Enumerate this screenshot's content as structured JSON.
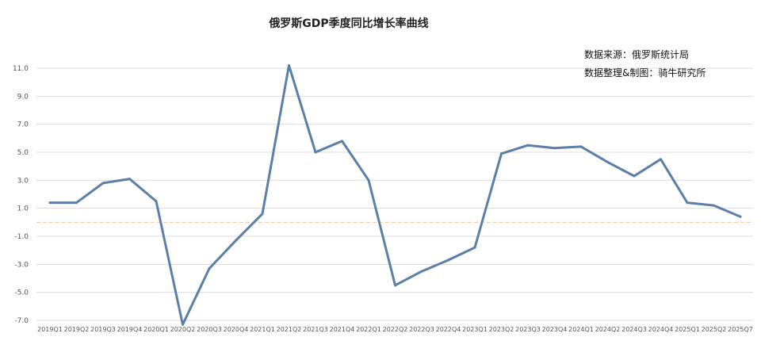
{
  "chart_data": {
    "type": "line",
    "title": "俄罗斯GDP季度同比增长率曲线",
    "source_lines": [
      "数据来源：俄罗斯统计局",
      "数据整理&制图：骑牛研究所"
    ],
    "xlabel": "",
    "ylabel": "",
    "categories": [
      "2019Q1",
      "2019Q2",
      "2019Q3",
      "2019Q4",
      "2020Q1",
      "2020Q2",
      "2020Q3",
      "2020Q4",
      "2021Q1",
      "2021Q2",
      "2021Q3",
      "2021Q4",
      "2022Q1",
      "2022Q2",
      "2022Q3",
      "2022Q4",
      "2023Q1",
      "2023Q2",
      "2023Q3",
      "2023Q4",
      "2024Q1",
      "2024Q2",
      "2024Q3",
      "2024Q4",
      "2025Q1",
      "2025Q2",
      "2025Q7"
    ],
    "series": [
      {
        "values": [
          1.4,
          1.4,
          2.8,
          3.1,
          1.5,
          -7.3,
          -3.3,
          -1.3,
          0.6,
          11.2,
          5.0,
          5.8,
          3.0,
          -4.5,
          -3.5,
          -2.7,
          -1.8,
          4.9,
          5.5,
          5.3,
          5.4,
          4.3,
          3.3,
          4.5,
          1.4,
          1.2,
          0.4
        ]
      }
    ],
    "yticks": [
      "11.0",
      "9.0",
      "7.0",
      "5.0",
      "3.0",
      "1.0",
      "-1.0",
      "-3.0",
      "-5.0",
      "-7.0"
    ],
    "ylim": [
      -7.0,
      11.0
    ],
    "reference_line": 0,
    "grid": true,
    "colors": {
      "series": "#5b7fa6",
      "grid": "#dcdcdc",
      "reference": "#f2c29b"
    }
  }
}
